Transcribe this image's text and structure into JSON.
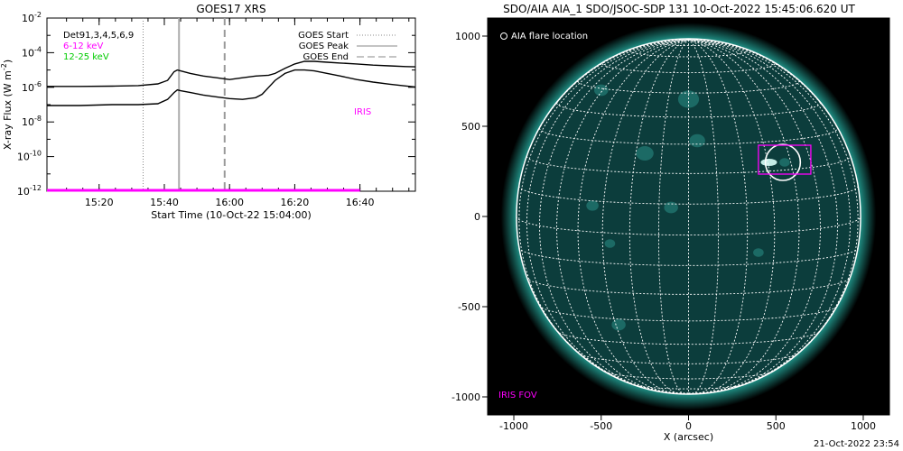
{
  "chart_data": [
    {
      "type": "line",
      "title": "GOES17 XRS",
      "xlabel": "Start Time (10-Oct-22 15:04:00)",
      "ylabel_main": "X-ray Flux (W m",
      "ylabel_sup": "-2",
      "ylabel_close": ")",
      "x_ticks": [
        "15:20",
        "15:40",
        "16:00",
        "16:20",
        "16:40"
      ],
      "x_tick_minutes": [
        16,
        36,
        56,
        76,
        96
      ],
      "xlim_minutes": [
        0,
        113
      ],
      "y_scale": "log",
      "ylim": [
        1e-12,
        0.01
      ],
      "y_tick_labels": [
        {
          "base": "10",
          "exp": "-2",
          "value": -2
        },
        {
          "base": "10",
          "exp": "-4",
          "value": -4
        },
        {
          "base": "10",
          "exp": "-6",
          "value": -6
        },
        {
          "base": "10",
          "exp": "-8",
          "value": -8
        },
        {
          "base": "10",
          "exp": "-10",
          "value": -10
        },
        {
          "base": "10",
          "exp": "-12",
          "value": -12
        }
      ],
      "legend_left": [
        {
          "text": "Det91,3,4,5,6,9",
          "color": "#000000"
        },
        {
          "text": "6-12 keV",
          "color": "#ff00ff"
        },
        {
          "text": "12-25 keV",
          "color": "#00cc00"
        }
      ],
      "legend_right": [
        {
          "text": "GOES Start",
          "style": "dotted"
        },
        {
          "text": "GOES Peak",
          "style": "solid"
        },
        {
          "text": "GOES End",
          "style": "dashed"
        }
      ],
      "vlines_minutes": {
        "start": 29.5,
        "peak": 40.5,
        "end": 54.5
      },
      "iris_label": "IRIS",
      "iris_bar": {
        "x_start_minutes": 0,
        "x_end_minutes": 96,
        "y_value": -12
      },
      "series": [
        {
          "color": "#000000",
          "x_minutes": [
            0,
            10,
            20,
            28,
            34,
            37,
            39,
            40,
            41,
            44,
            48,
            52,
            56,
            60,
            64,
            68,
            70,
            73,
            76,
            79,
            82,
            86,
            90,
            95,
            100,
            105,
            110,
            113
          ],
          "log10_flux": [
            -5.95,
            -5.95,
            -5.93,
            -5.9,
            -5.8,
            -5.6,
            -5.1,
            -5.0,
            -5.05,
            -5.2,
            -5.35,
            -5.45,
            -5.55,
            -5.45,
            -5.35,
            -5.3,
            -5.2,
            -4.9,
            -4.65,
            -4.5,
            -4.5,
            -4.55,
            -4.6,
            -4.65,
            -4.72,
            -4.76,
            -4.8,
            -4.82
          ]
        },
        {
          "color": "#000000",
          "x_minutes": [
            0,
            10,
            20,
            28,
            34,
            37,
            39,
            40,
            41,
            44,
            48,
            52,
            56,
            60,
            64,
            66,
            68,
            70,
            73,
            76,
            79,
            82,
            86,
            90,
            95,
            100,
            105,
            110,
            113
          ],
          "log10_flux": [
            -7.05,
            -7.05,
            -7.0,
            -7.0,
            -6.95,
            -6.7,
            -6.3,
            -6.15,
            -6.2,
            -6.3,
            -6.45,
            -6.55,
            -6.65,
            -6.7,
            -6.6,
            -6.4,
            -6.0,
            -5.6,
            -5.2,
            -5.0,
            -5.0,
            -5.05,
            -5.2,
            -5.35,
            -5.55,
            -5.7,
            -5.82,
            -5.92,
            -5.98
          ]
        }
      ]
    },
    {
      "type": "image",
      "title": "SDO/AIA AIA_1 SDO/JSOC-SDP 131 10-Oct-2022 15:45:06.620 UT",
      "xlabel": "X (arcsec)",
      "x_ticks": [
        "-1000",
        "-500",
        "0",
        "500",
        "1000"
      ],
      "y_ticks": [
        "1000",
        "500",
        "0",
        "-500",
        "-1000"
      ],
      "tick_values": [
        -1000,
        -500,
        0,
        500,
        1000
      ],
      "range_arcsec": [
        -1150,
        1150
      ],
      "y_range_arcsec": [
        -1100,
        1100
      ],
      "solar_radius_arcsec": 985,
      "legend": "AIA flare location",
      "iris_fov_label": "IRIS FOV",
      "flare_circle_center": [
        540,
        300
      ],
      "flare_circle_radius": 100,
      "iris_fov_box": [
        400,
        235,
        700,
        395
      ],
      "colors": {
        "disk": "#0c3d3c",
        "grid": "#ffffff",
        "iris": "#ff00ff",
        "background": "#000000"
      }
    }
  ],
  "footer": {
    "timestamp": "21-Oct-2022 23:54"
  }
}
